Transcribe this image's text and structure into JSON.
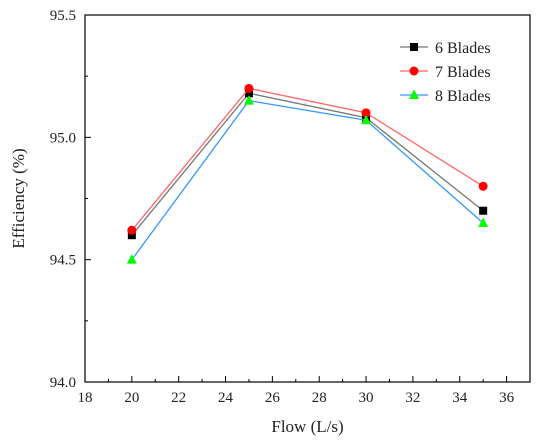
{
  "chart_data": {
    "type": "line",
    "xlabel": "Flow (L/s)",
    "ylabel": "Efficiency (%)",
    "xlim": [
      18,
      37
    ],
    "ylim": [
      94.0,
      95.5
    ],
    "xticks": [
      "18",
      "20",
      "22",
      "24",
      "26",
      "28",
      "30",
      "32",
      "34",
      "36"
    ],
    "yticks": [
      "94.0",
      "94.5",
      "95.0",
      "95.5"
    ],
    "legend_position": "top-right",
    "grid": false,
    "series": [
      {
        "name": "6 Blades",
        "color": "#000000",
        "line_color": "#777777",
        "marker": "square",
        "x": [
          20,
          25,
          30,
          35
        ],
        "y": [
          94.6,
          95.18,
          95.08,
          94.7
        ]
      },
      {
        "name": "7 Blades",
        "color": "#ff0000",
        "line_color": "#ff6666",
        "marker": "circle",
        "x": [
          20,
          25,
          30,
          35
        ],
        "y": [
          94.62,
          95.2,
          95.1,
          94.8
        ]
      },
      {
        "name": "8 Blades",
        "color": "#00ff00",
        "line_color": "#3399ff",
        "marker": "triangle",
        "x": [
          20,
          25,
          30,
          35
        ],
        "y": [
          94.5,
          95.15,
          95.07,
          94.65
        ]
      }
    ]
  }
}
